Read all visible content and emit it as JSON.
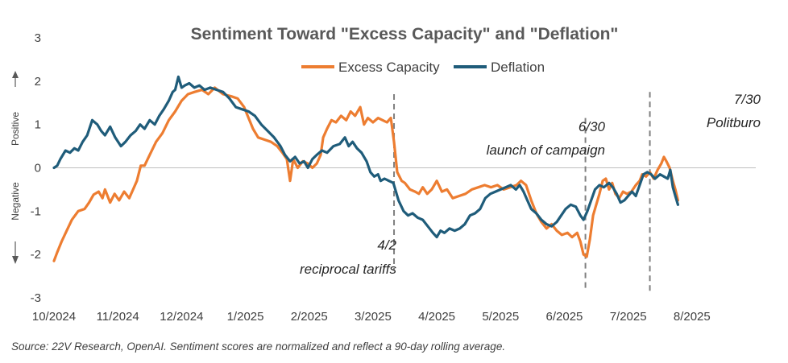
{
  "chart_data": {
    "type": "line",
    "title": "Sentiment Toward \"Excess Capacity\" and \"Deflation\"",
    "ylim": [
      -3,
      3
    ],
    "yticks": [
      "-3",
      "-2",
      "-1",
      "0",
      "1",
      "2",
      "3"
    ],
    "xlim": [
      0,
      11
    ],
    "x_tick_labels": [
      "10/2024",
      "11/2024",
      "12/2024",
      "1/2025",
      "2/2025",
      "3/2025",
      "4/2025",
      "5/2025",
      "6/2025",
      "7/2025",
      "8/2025"
    ],
    "y_side_labels": {
      "positive": "Positive",
      "negative": "Negative"
    },
    "legend": {
      "placement": "top-center"
    },
    "series": [
      {
        "name": "Excess Capacity",
        "color": "#ED7D31",
        "points": [
          [
            0.0,
            -2.15
          ],
          [
            0.05,
            -1.95
          ],
          [
            0.12,
            -1.7
          ],
          [
            0.2,
            -1.45
          ],
          [
            0.28,
            -1.2
          ],
          [
            0.38,
            -1.0
          ],
          [
            0.48,
            -0.95
          ],
          [
            0.55,
            -0.8
          ],
          [
            0.62,
            -0.62
          ],
          [
            0.7,
            -0.55
          ],
          [
            0.76,
            -0.7
          ],
          [
            0.8,
            -0.5
          ],
          [
            0.88,
            -0.8
          ],
          [
            0.95,
            -0.6
          ],
          [
            1.02,
            -0.75
          ],
          [
            1.1,
            -0.55
          ],
          [
            1.18,
            -0.7
          ],
          [
            1.24,
            -0.5
          ],
          [
            1.3,
            -0.3
          ],
          [
            1.36,
            0.05
          ],
          [
            1.42,
            0.05
          ],
          [
            1.5,
            0.3
          ],
          [
            1.6,
            0.6
          ],
          [
            1.7,
            0.8
          ],
          [
            1.8,
            1.1
          ],
          [
            1.9,
            1.3
          ],
          [
            2.0,
            1.55
          ],
          [
            2.1,
            1.7
          ],
          [
            2.2,
            1.75
          ],
          [
            2.32,
            1.8
          ],
          [
            2.42,
            1.7
          ],
          [
            2.52,
            1.85
          ],
          [
            2.65,
            1.7
          ],
          [
            2.78,
            1.65
          ],
          [
            2.88,
            1.6
          ],
          [
            2.98,
            1.4
          ],
          [
            3.05,
            1.15
          ],
          [
            3.12,
            0.9
          ],
          [
            3.2,
            0.7
          ],
          [
            3.3,
            0.65
          ],
          [
            3.4,
            0.6
          ],
          [
            3.5,
            0.5
          ],
          [
            3.58,
            0.35
          ],
          [
            3.65,
            0.2
          ],
          [
            3.7,
            -0.3
          ],
          [
            3.75,
            0.2
          ],
          [
            3.82,
            0.0
          ],
          [
            3.9,
            0.15
          ],
          [
            3.98,
            0.1
          ],
          [
            4.05,
            0.0
          ],
          [
            4.12,
            0.1
          ],
          [
            4.18,
            0.3
          ],
          [
            4.22,
            0.7
          ],
          [
            4.28,
            0.9
          ],
          [
            4.35,
            1.1
          ],
          [
            4.42,
            1.05
          ],
          [
            4.5,
            1.2
          ],
          [
            4.58,
            1.1
          ],
          [
            4.65,
            1.3
          ],
          [
            4.72,
            1.2
          ],
          [
            4.8,
            1.4
          ],
          [
            4.86,
            1.0
          ],
          [
            4.92,
            1.15
          ],
          [
            5.0,
            1.05
          ],
          [
            5.08,
            1.15
          ],
          [
            5.15,
            1.1
          ],
          [
            5.22,
            1.05
          ],
          [
            5.28,
            1.15
          ],
          [
            5.33,
            0.6
          ],
          [
            5.38,
            -0.1
          ],
          [
            5.45,
            -0.3
          ],
          [
            5.5,
            -0.35
          ],
          [
            5.58,
            -0.5
          ],
          [
            5.66,
            -0.55
          ],
          [
            5.72,
            -0.6
          ],
          [
            5.78,
            -0.45
          ],
          [
            5.85,
            -0.6
          ],
          [
            5.92,
            -0.5
          ],
          [
            6.0,
            -0.3
          ],
          [
            6.08,
            -0.55
          ],
          [
            6.16,
            -0.5
          ],
          [
            6.25,
            -0.7
          ],
          [
            6.35,
            -0.65
          ],
          [
            6.45,
            -0.6
          ],
          [
            6.55,
            -0.5
          ],
          [
            6.65,
            -0.45
          ],
          [
            6.75,
            -0.4
          ],
          [
            6.85,
            -0.45
          ],
          [
            6.95,
            -0.4
          ],
          [
            7.05,
            -0.5
          ],
          [
            7.15,
            -0.45
          ],
          [
            7.25,
            -0.4
          ],
          [
            7.32,
            -0.3
          ],
          [
            7.4,
            -0.4
          ],
          [
            7.48,
            -0.75
          ],
          [
            7.56,
            -1.05
          ],
          [
            7.64,
            -1.25
          ],
          [
            7.72,
            -1.4
          ],
          [
            7.8,
            -1.3
          ],
          [
            7.88,
            -1.45
          ],
          [
            7.96,
            -1.55
          ],
          [
            8.05,
            -1.5
          ],
          [
            8.12,
            -1.6
          ],
          [
            8.2,
            -1.5
          ],
          [
            8.25,
            -1.7
          ],
          [
            8.3,
            -2.0
          ],
          [
            8.35,
            -2.05
          ],
          [
            8.4,
            -1.65
          ],
          [
            8.45,
            -1.1
          ],
          [
            8.5,
            -0.85
          ],
          [
            8.55,
            -0.6
          ],
          [
            8.6,
            -0.3
          ],
          [
            8.65,
            -0.25
          ],
          [
            8.7,
            -0.5
          ],
          [
            8.75,
            -0.35
          ],
          [
            8.8,
            -0.6
          ],
          [
            8.86,
            -0.7
          ],
          [
            8.92,
            -0.55
          ],
          [
            8.98,
            -0.6
          ],
          [
            9.05,
            -0.55
          ],
          [
            9.12,
            -0.4
          ],
          [
            9.18,
            -0.3
          ],
          [
            9.22,
            -0.15
          ],
          [
            9.28,
            -0.2
          ],
          [
            9.34,
            -0.1
          ],
          [
            9.4,
            -0.25
          ],
          [
            9.46,
            -0.05
          ],
          [
            9.52,
            0.1
          ],
          [
            9.56,
            0.25
          ],
          [
            9.6,
            0.15
          ],
          [
            9.65,
            0.0
          ],
          [
            9.7,
            -0.3
          ],
          [
            9.74,
            -0.5
          ],
          [
            9.78,
            -0.75
          ]
        ]
      },
      {
        "name": "Deflation",
        "color": "#1F5C7A",
        "points": [
          [
            0.0,
            0.0
          ],
          [
            0.05,
            0.05
          ],
          [
            0.1,
            0.2
          ],
          [
            0.18,
            0.4
          ],
          [
            0.25,
            0.35
          ],
          [
            0.32,
            0.45
          ],
          [
            0.38,
            0.4
          ],
          [
            0.45,
            0.6
          ],
          [
            0.52,
            0.75
          ],
          [
            0.6,
            1.1
          ],
          [
            0.68,
            1.0
          ],
          [
            0.74,
            0.85
          ],
          [
            0.8,
            0.75
          ],
          [
            0.88,
            0.95
          ],
          [
            0.96,
            0.7
          ],
          [
            1.05,
            0.5
          ],
          [
            1.12,
            0.6
          ],
          [
            1.2,
            0.75
          ],
          [
            1.28,
            0.85
          ],
          [
            1.35,
            1.0
          ],
          [
            1.42,
            0.9
          ],
          [
            1.5,
            1.1
          ],
          [
            1.58,
            1.0
          ],
          [
            1.65,
            1.2
          ],
          [
            1.72,
            1.35
          ],
          [
            1.8,
            1.55
          ],
          [
            1.86,
            1.75
          ],
          [
            1.9,
            1.8
          ],
          [
            1.95,
            2.1
          ],
          [
            2.0,
            1.85
          ],
          [
            2.05,
            1.9
          ],
          [
            2.12,
            1.95
          ],
          [
            2.2,
            1.85
          ],
          [
            2.28,
            1.9
          ],
          [
            2.36,
            1.8
          ],
          [
            2.45,
            1.85
          ],
          [
            2.55,
            1.8
          ],
          [
            2.65,
            1.75
          ],
          [
            2.75,
            1.6
          ],
          [
            2.85,
            1.4
          ],
          [
            2.95,
            1.35
          ],
          [
            3.05,
            1.3
          ],
          [
            3.15,
            1.2
          ],
          [
            3.25,
            1.0
          ],
          [
            3.35,
            0.85
          ],
          [
            3.45,
            0.7
          ],
          [
            3.55,
            0.5
          ],
          [
            3.62,
            0.3
          ],
          [
            3.7,
            0.15
          ],
          [
            3.78,
            0.25
          ],
          [
            3.85,
            0.1
          ],
          [
            3.92,
            0.15
          ],
          [
            3.98,
            0.0
          ],
          [
            4.05,
            0.2
          ],
          [
            4.12,
            0.3
          ],
          [
            4.2,
            0.4
          ],
          [
            4.28,
            0.35
          ],
          [
            4.38,
            0.5
          ],
          [
            4.48,
            0.55
          ],
          [
            4.56,
            0.7
          ],
          [
            4.62,
            0.5
          ],
          [
            4.68,
            0.6
          ],
          [
            4.75,
            0.45
          ],
          [
            4.82,
            0.35
          ],
          [
            4.9,
            0.15
          ],
          [
            4.96,
            -0.1
          ],
          [
            5.02,
            -0.2
          ],
          [
            5.08,
            -0.15
          ],
          [
            5.12,
            -0.3
          ],
          [
            5.18,
            -0.25
          ],
          [
            5.25,
            -0.3
          ],
          [
            5.32,
            -0.35
          ],
          [
            5.4,
            -0.75
          ],
          [
            5.48,
            -1.0
          ],
          [
            5.55,
            -1.1
          ],
          [
            5.62,
            -1.05
          ],
          [
            5.7,
            -1.15
          ],
          [
            5.78,
            -1.2
          ],
          [
            5.86,
            -1.35
          ],
          [
            5.94,
            -1.5
          ],
          [
            6.0,
            -1.6
          ],
          [
            6.06,
            -1.45
          ],
          [
            6.12,
            -1.5
          ],
          [
            6.2,
            -1.4
          ],
          [
            6.28,
            -1.45
          ],
          [
            6.36,
            -1.4
          ],
          [
            6.44,
            -1.3
          ],
          [
            6.52,
            -1.1
          ],
          [
            6.6,
            -1.05
          ],
          [
            6.68,
            -0.95
          ],
          [
            6.76,
            -0.7
          ],
          [
            6.84,
            -0.6
          ],
          [
            6.92,
            -0.55
          ],
          [
            7.0,
            -0.5
          ],
          [
            7.08,
            -0.45
          ],
          [
            7.16,
            -0.4
          ],
          [
            7.24,
            -0.5
          ],
          [
            7.3,
            -0.4
          ],
          [
            7.36,
            -0.55
          ],
          [
            7.42,
            -0.75
          ],
          [
            7.48,
            -0.95
          ],
          [
            7.56,
            -1.05
          ],
          [
            7.64,
            -1.2
          ],
          [
            7.72,
            -1.3
          ],
          [
            7.8,
            -1.35
          ],
          [
            7.88,
            -1.25
          ],
          [
            7.95,
            -1.1
          ],
          [
            8.02,
            -0.95
          ],
          [
            8.1,
            -0.85
          ],
          [
            8.18,
            -0.9
          ],
          [
            8.25,
            -1.1
          ],
          [
            8.3,
            -1.2
          ],
          [
            8.36,
            -1.0
          ],
          [
            8.42,
            -0.75
          ],
          [
            8.48,
            -0.5
          ],
          [
            8.55,
            -0.4
          ],
          [
            8.62,
            -0.45
          ],
          [
            8.7,
            -0.35
          ],
          [
            8.76,
            -0.45
          ],
          [
            8.82,
            -0.6
          ],
          [
            8.88,
            -0.8
          ],
          [
            8.94,
            -0.75
          ],
          [
            9.0,
            -0.65
          ],
          [
            9.06,
            -0.55
          ],
          [
            9.12,
            -0.65
          ],
          [
            9.18,
            -0.4
          ],
          [
            9.24,
            -0.15
          ],
          [
            9.3,
            -0.1
          ],
          [
            9.36,
            -0.15
          ],
          [
            9.42,
            -0.25
          ],
          [
            9.5,
            -0.15
          ],
          [
            9.56,
            -0.2
          ],
          [
            9.62,
            -0.25
          ],
          [
            9.66,
            -0.05
          ],
          [
            9.7,
            -0.45
          ],
          [
            9.74,
            -0.65
          ],
          [
            9.78,
            -0.85
          ]
        ]
      }
    ],
    "annotations": [
      {
        "x": 5.33,
        "lines": [
          "4/2",
          "reciprocal tariffs"
        ]
      },
      {
        "x": 8.33,
        "lines": [
          "6/30",
          "launch of campaign"
        ]
      },
      {
        "x": 9.34,
        "lines": [
          "7/30",
          "Politburo"
        ]
      }
    ]
  },
  "source": "Source: 22V Research, OpenAI. Sentiment scores are normalized and reflect a 90-day rolling average."
}
